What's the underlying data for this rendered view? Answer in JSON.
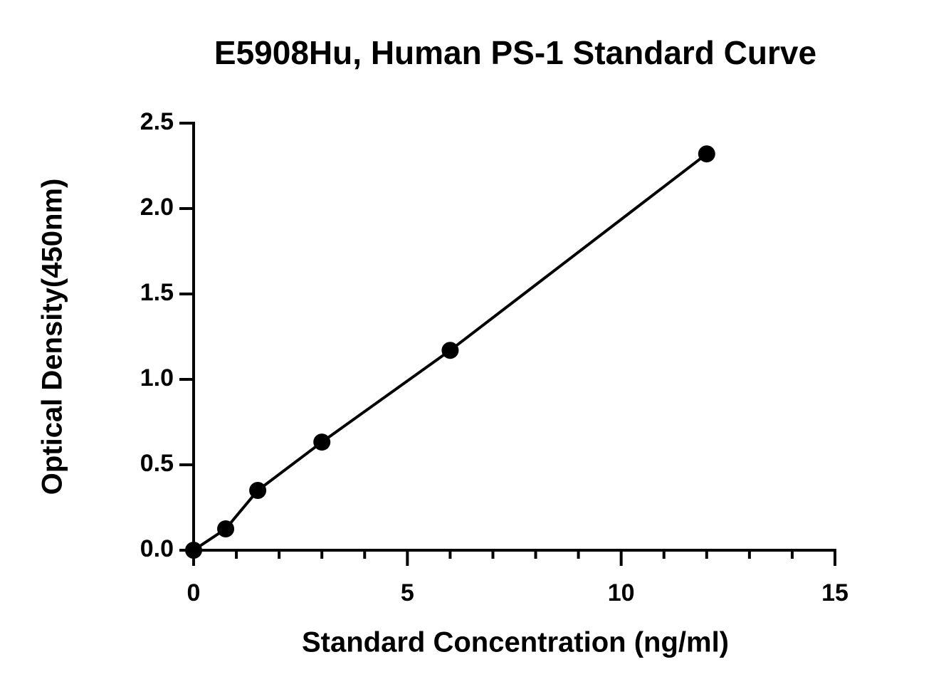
{
  "chart_data": {
    "type": "scatter",
    "title": "E5908Hu, Human PS-1 Standard Curve",
    "x_label": "Standard Concentration (ng/ml)",
    "y_label": "Optical Density(450nm)",
    "x": [
      0,
      0.75,
      1.5,
      3,
      6,
      12
    ],
    "series": [
      {
        "name": "OD",
        "color": "#000000",
        "values": [
          0.0,
          0.125,
          0.35,
          0.633,
          1.17,
          2.32
        ]
      }
    ],
    "line": true,
    "xlim": [
      0,
      15
    ],
    "xticks": [
      0,
      5,
      10,
      15
    ],
    "xminorticks": [
      1,
      2,
      3,
      4,
      6,
      7,
      8,
      9,
      11,
      12,
      13,
      14
    ],
    "ylim": [
      0,
      2.5
    ],
    "yticks": [
      {
        "value": 0,
        "label": "0.0"
      },
      {
        "value": 0.5,
        "label": "0.5"
      },
      {
        "value": 1,
        "label": "1.0"
      },
      {
        "value": 1.5,
        "label": "1.5"
      },
      {
        "value": 2,
        "label": "2.0"
      },
      {
        "value": 2.5,
        "label": "2.5"
      }
    ]
  }
}
